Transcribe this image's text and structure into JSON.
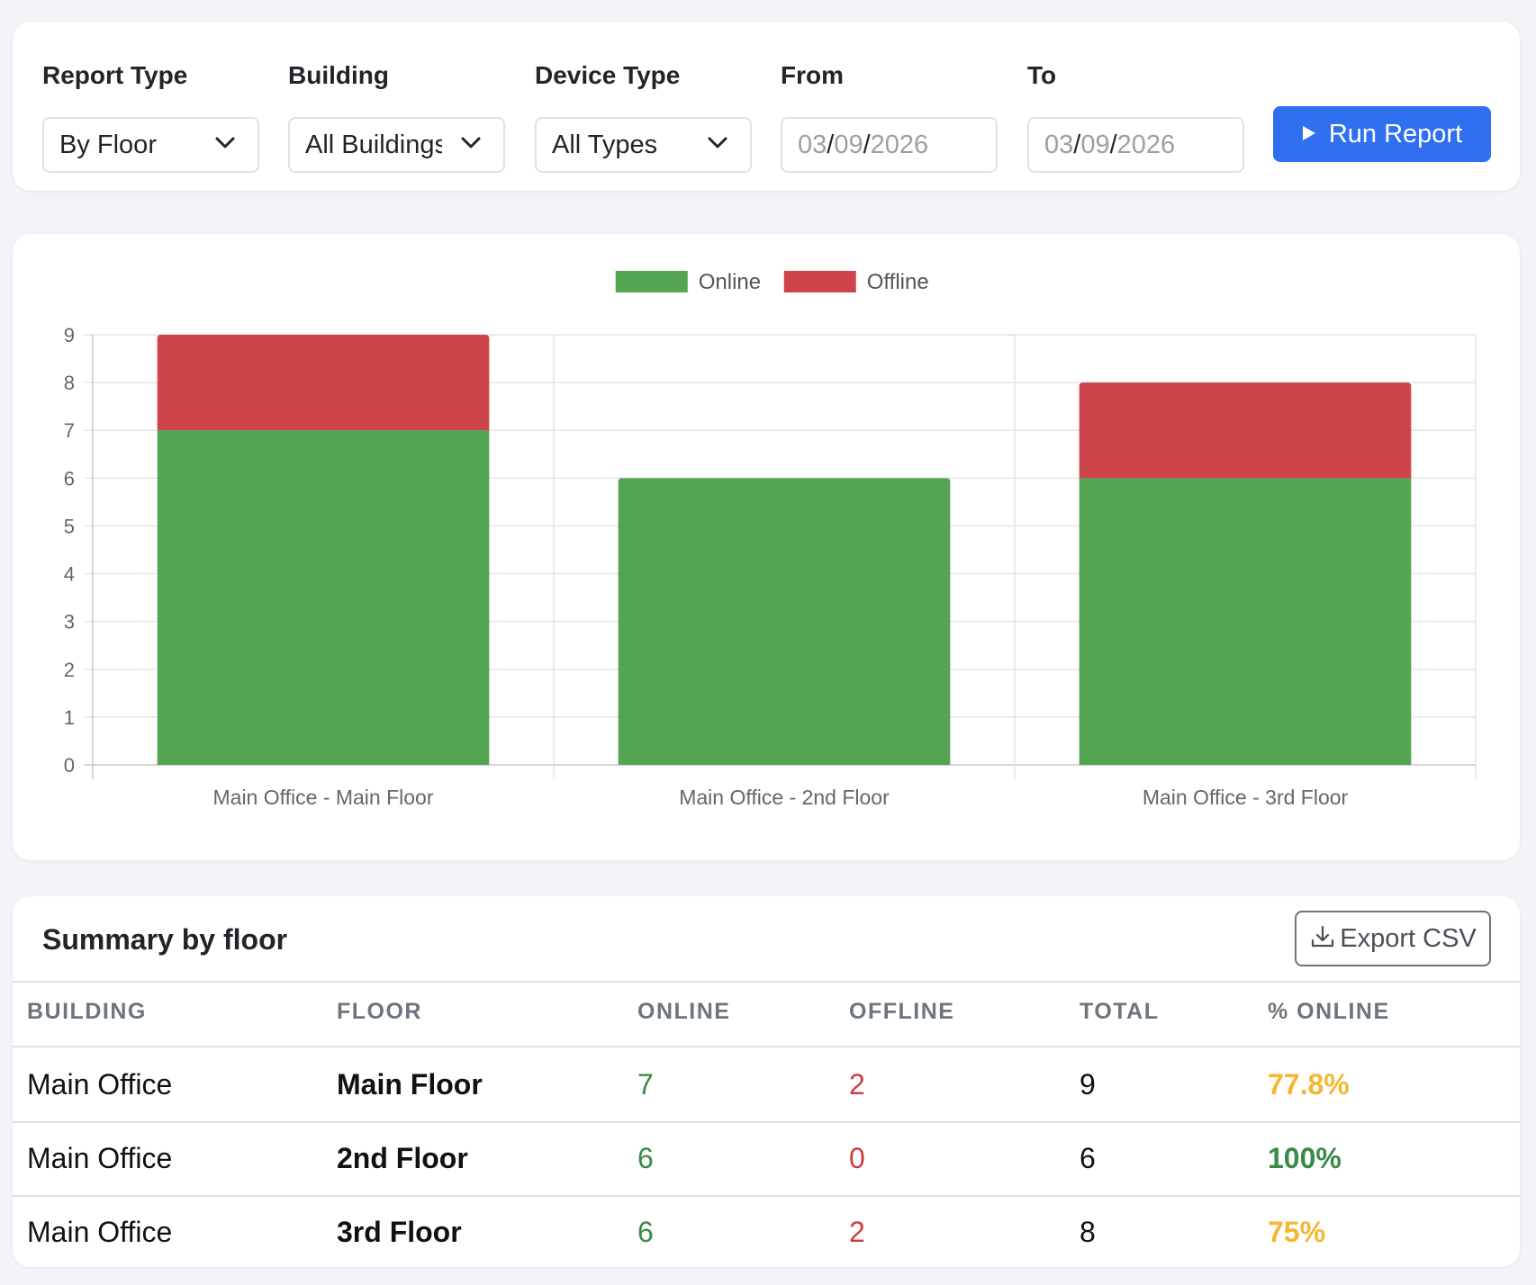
{
  "filters": {
    "report_type": {
      "label": "Report Type",
      "value": "By Floor"
    },
    "building": {
      "label": "Building",
      "value": "All Buildings"
    },
    "device_type": {
      "label": "Device Type",
      "value": "All Types"
    },
    "from": {
      "label": "From",
      "month": "03",
      "day": "09",
      "year": "2026"
    },
    "to": {
      "label": "To",
      "month": "03",
      "day": "09",
      "year": "2026"
    },
    "run_report_label": "Run Report"
  },
  "chart_data": {
    "type": "bar",
    "stacked": true,
    "categories": [
      "Main Office - Main Floor",
      "Main Office - 2nd Floor",
      "Main Office - 3rd Floor"
    ],
    "series": [
      {
        "name": "Online",
        "values": [
          7,
          6,
          6
        ],
        "color": "#53a552"
      },
      {
        "name": "Offline",
        "values": [
          2,
          0,
          2
        ],
        "color": "#cd444b"
      }
    ],
    "ylim": [
      0,
      9
    ],
    "yticks": [
      0,
      1,
      2,
      3,
      4,
      5,
      6,
      7,
      8,
      9
    ],
    "grid": true,
    "legend": "top-center"
  },
  "summary": {
    "title": "Summary by floor",
    "export_label": "Export CSV",
    "columns": [
      "BUILDING",
      "FLOOR",
      "ONLINE",
      "OFFLINE",
      "TOTAL",
      "% ONLINE"
    ],
    "rows": [
      {
        "building": "Main Office",
        "floor": "Main Floor",
        "online": "7",
        "offline": "2",
        "total": "9",
        "pct": "77.8%",
        "pct_color": "#f4b731"
      },
      {
        "building": "Main Office",
        "floor": "2nd Floor",
        "online": "6",
        "offline": "0",
        "total": "6",
        "pct": "100%",
        "pct_color": "#3a8a48"
      },
      {
        "building": "Main Office",
        "floor": "3rd Floor",
        "online": "6",
        "offline": "2",
        "total": "8",
        "pct": "75%",
        "pct_color": "#f4b731"
      }
    ]
  },
  "icons": {
    "chevron": "chevron-down-icon",
    "play": "play-icon",
    "download": "download-icon"
  }
}
